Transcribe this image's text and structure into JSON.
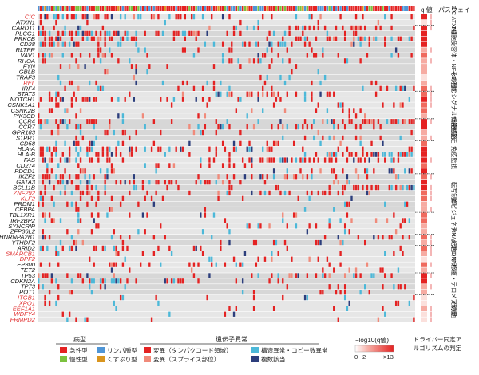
{
  "chart_data": {
    "type": "heatmap",
    "title": "",
    "xlabel": "",
    "ylabel": "",
    "genes": [
      "CIC",
      "ATXN1",
      "CARD11",
      "PLCG1",
      "PRKCB",
      "CD28",
      "RLTPR",
      "VAV1",
      "RHOA",
      "FYN",
      "GBLB",
      "TRAF3",
      "REL",
      "IRF4",
      "STAT3",
      "NOTCH1",
      "CSNK1A1",
      "CSNK2B",
      "PIK3CD",
      "CCR4",
      "CCR7",
      "GPR183",
      "S1PR1",
      "CD58",
      "HLA-A",
      "HLA-B",
      "FAS",
      "CD274",
      "PDCD1",
      "IKZF2",
      "GATA3",
      "BCL11B",
      "ZNF292",
      "KLF2",
      "PRDM1",
      "CEBPA",
      "TBL1XR1",
      "IRF2BP2",
      "SYNCRIP",
      "ZFP36L2",
      "HNRNPA2B1",
      "YTHDF2",
      "ARID2",
      "SMARCB1",
      "DPF2",
      "EP300",
      "TET2",
      "TP53",
      "CDKN2A",
      "TP73",
      "POT1",
      "ITGB1",
      "XPO1",
      "EEF1A1",
      "WDFY4",
      "FRMPD2"
    ],
    "red_label_genes": [
      "CIC",
      "REL",
      "ZNF292",
      "KLF2",
      "SMARCB1",
      "DPF2",
      "ITGB1",
      "XPO1",
      "EEF1A1",
      "WDFY4",
      "FRMPD2"
    ],
    "header_labels": {
      "q_value": "q 値",
      "pathway": "パスウェイ"
    },
    "pathways": [
      {
        "label": "CIC ATXN1",
        "genes": [
          "CIC",
          "ATXN1"
        ]
      },
      {
        "label": "T細胞受容体・NF-κB経路",
        "genes": [
          "CARD11",
          "PLCG1",
          "PRKCB",
          "CD28",
          "RLTPR",
          "VAV1",
          "RHOA",
          "FYN",
          "GBLB",
          "TRAF3",
          "REL",
          "IRF4"
        ]
      },
      {
        "label": "その他のシグナル伝達経路",
        "genes": [
          "STAT3",
          "NOTCH1",
          "CSNK1A1",
          "CSNK2B",
          "PIK3CD"
        ]
      },
      {
        "label": "T細胞遊走",
        "genes": [
          "CCR4",
          "CCR7",
          "GPR183",
          "S1PR1"
        ]
      },
      {
        "label": "免疫監視",
        "genes": [
          "CD58",
          "HLA-A",
          "HLA-B",
          "FAS",
          "CD274",
          "PDCD1"
        ]
      },
      {
        "label": "転写制御",
        "genes": [
          "IKZF2",
          "GATA3",
          "BCL11B",
          "ZNF292",
          "KLF2",
          "PRDM1",
          "CEBPA"
        ]
      },
      {
        "label": "エピジェネティック",
        "genes": [
          "TBL1XR1",
          "IRF2BP2",
          "SYNCRIP",
          "ZFP36L2"
        ]
      },
      {
        "label": "RNA結合",
        "genes": [
          "HNRNPA2B1",
          "YTHDF2"
        ]
      },
      {
        "label": "クロマチン",
        "genes": [
          "ARID2",
          "SMARCB1",
          "DPF2",
          "EP300",
          "TET2"
        ]
      },
      {
        "label": "DNA修復・テロメア制御",
        "genes": [
          "TP53",
          "CDKN2A",
          "TP73",
          "POT1"
        ]
      },
      {
        "label": "その他",
        "genes": [
          "ITGB1",
          "XPO1",
          "EEF1A1",
          "WDFY4",
          "FRMPD2"
        ]
      }
    ],
    "alteration_frequency": [
      0.33,
      0.05,
      0.24,
      0.3,
      0.33,
      0.25,
      0.12,
      0.18,
      0.14,
      0.07,
      0.05,
      0.06,
      0.1,
      0.12,
      0.16,
      0.22,
      0.12,
      0.1,
      0.08,
      0.28,
      0.2,
      0.1,
      0.08,
      0.18,
      0.25,
      0.28,
      0.3,
      0.15,
      0.2,
      0.18,
      0.26,
      0.22,
      0.18,
      0.12,
      0.1,
      0.08,
      0.18,
      0.14,
      0.1,
      0.1,
      0.12,
      0.1,
      0.16,
      0.08,
      0.06,
      0.1,
      0.08,
      0.18,
      0.28,
      0.1,
      0.08,
      0.05,
      0.06,
      0.05,
      0.06,
      0.05
    ],
    "q_value_scale": {
      "label": "−log10(q値)",
      "ticks": [
        "0",
        "2",
        ">13"
      ],
      "range": [
        0,
        13
      ]
    },
    "legends": {
      "disease_type": {
        "title": "病型",
        "items": [
          {
            "label": "急性型",
            "color": "#e42222"
          },
          {
            "label": "リンパ腫型",
            "color": "#4e95d6"
          },
          {
            "label": "慢性型",
            "color": "#7cc23e"
          },
          {
            "label": "くすぶり型",
            "color": "#d9951e"
          }
        ]
      },
      "genetic_alteration": {
        "title": "遺伝子異常",
        "items": [
          {
            "label": "変異（タンパクコード領域）",
            "color": "#e42222"
          },
          {
            "label": "構造異常・コピー数異常",
            "color": "#4cb8d8"
          },
          {
            "label": "変異（スプライス部位）",
            "color": "#f08a7a"
          },
          {
            "label": "複数該当",
            "color": "#2c3e7c"
          }
        ]
      },
      "driver_note": "ドライバー同定アルゴリズムの判定"
    },
    "colors": {
      "background": "#e6e6e6",
      "shade": "#d7d7d7",
      "mutation": "#e42222",
      "structural": "#4cb8d8",
      "splice": "#f08a7a",
      "multiple": "#2c3e7c",
      "driver_mark": "#f4b6b6"
    }
  }
}
